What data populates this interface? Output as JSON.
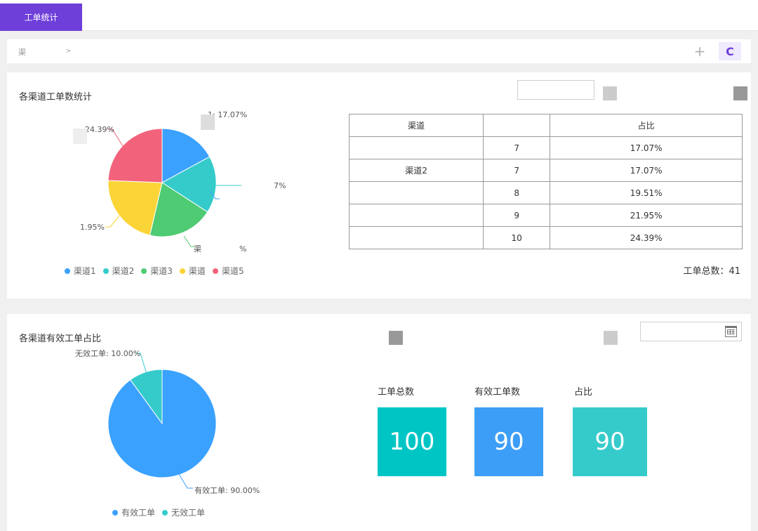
{
  "tab": {
    "label": "工单统计"
  },
  "breadcrumb": {
    "text": "渠",
    "arrow": ">"
  },
  "toolbar": {
    "add": "+",
    "refresh": "C"
  },
  "panel1": {
    "title": "各渠道工单数统计",
    "table": {
      "headers": [
        "渠道",
        "",
        "占比"
      ],
      "rows": [
        {
          "name": "",
          "count": "7",
          "ratio": "17.07%"
        },
        {
          "name": "渠道2",
          "count": "7",
          "ratio": "17.07%"
        },
        {
          "name": "",
          "count": "8",
          "ratio": "19.51%"
        },
        {
          "name": "",
          "count": "9",
          "ratio": "21.95%"
        },
        {
          "name": "",
          "count": "10",
          "ratio": "24.39%"
        }
      ]
    },
    "total": "工单总数：41",
    "legend": [
      "渠道1",
      "渠道2",
      "渠道3",
      "渠道",
      "渠道5"
    ],
    "pie_labels": [
      "1: 17.07%",
      "7%",
      "渠",
      "%",
      "1.95%",
      "24.39%"
    ]
  },
  "panel2": {
    "title": "各渠道有效工单占比",
    "legend": [
      "有效工单",
      "无效工单"
    ],
    "pie_labels": [
      "无效工单: 10.00%",
      "有效工单: 90.00%"
    ],
    "stats": [
      {
        "label": "工单总数",
        "value": "100"
      },
      {
        "label": "有效工单数",
        "value": "90"
      },
      {
        "label": "占比",
        "value": "90"
      }
    ]
  },
  "colors": {
    "accent": "#6e3fd9",
    "blue": "#3aa1ff",
    "teal": "#36cbcb",
    "green": "#4ecb73",
    "yellow": "#fbd437",
    "red": "#f2637b",
    "stat_teal": "#00c5c5",
    "stat_blue": "#3d9ef7",
    "stat_cyan": "#36cbcb"
  },
  "icons": [
    "plus-icon",
    "refresh-icon",
    "calendar-icon"
  ],
  "chart_data": [
    {
      "type": "pie",
      "title": "各渠道工单数统计",
      "categories": [
        "渠道1",
        "渠道2",
        "渠道3",
        "渠道4",
        "渠道5"
      ],
      "values": [
        17.07,
        17.07,
        19.51,
        21.95,
        24.39
      ],
      "legend": "bottom"
    },
    {
      "type": "pie",
      "title": "各渠道有效工单占比",
      "categories": [
        "有效工单",
        "无效工单"
      ],
      "values": [
        90.0,
        10.0
      ],
      "legend": "bottom"
    }
  ]
}
